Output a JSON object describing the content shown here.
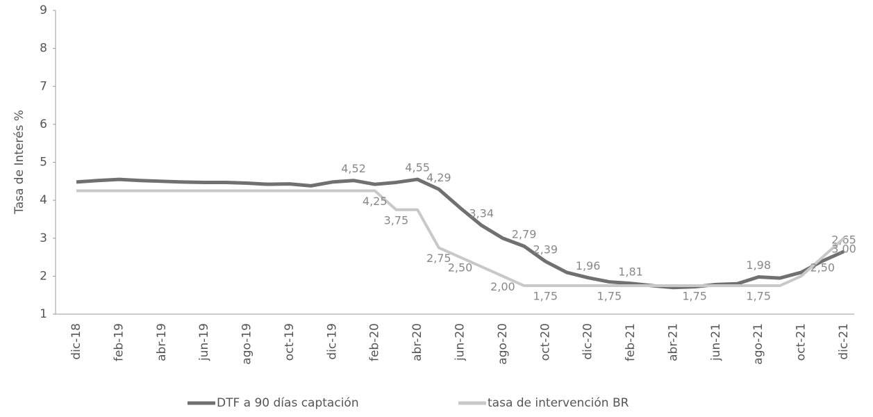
{
  "chart_data": {
    "type": "line",
    "y_label": "Tasa de Interés %",
    "categories": [
      "dic-18",
      null,
      "feb-19",
      null,
      "abr-19",
      null,
      "jun-19",
      null,
      "ago-19",
      null,
      "oct-19",
      null,
      "dic-19",
      null,
      "feb-20",
      null,
      "abr-20",
      null,
      "jun-20",
      null,
      "ago-20",
      null,
      "oct-20",
      null,
      "dic-20",
      null,
      "feb-21",
      null,
      "abr-21",
      null,
      "jun-21",
      null,
      "ago-21",
      null,
      "oct-21",
      null,
      "dic-21"
    ],
    "series": [
      {
        "name": "DTF a 90 días captación",
        "color": "#707070",
        "values": [
          4.48,
          4.52,
          4.55,
          4.52,
          4.5,
          4.48,
          4.47,
          4.47,
          4.45,
          4.42,
          4.43,
          4.38,
          4.48,
          4.52,
          4.42,
          4.47,
          4.55,
          4.29,
          3.8,
          3.34,
          3.0,
          2.79,
          2.39,
          2.1,
          1.96,
          1.85,
          1.81,
          1.75,
          1.7,
          1.72,
          1.78,
          1.8,
          1.98,
          1.95,
          2.1,
          2.4,
          2.65
        ],
        "value_labels": [
          null,
          null,
          null,
          null,
          null,
          null,
          null,
          null,
          null,
          null,
          null,
          null,
          null,
          "4,52",
          null,
          null,
          "4,55",
          "4,29",
          null,
          "3,34",
          null,
          "2,79",
          "2,39",
          null,
          "1,96",
          null,
          "1,81",
          null,
          null,
          null,
          null,
          null,
          "1,98",
          null,
          null,
          null,
          "2,65"
        ]
      },
      {
        "name": "tasa de intervención BR",
        "color": "#c8c8c8",
        "values": [
          4.25,
          4.25,
          4.25,
          4.25,
          4.25,
          4.25,
          4.25,
          4.25,
          4.25,
          4.25,
          4.25,
          4.25,
          4.25,
          4.25,
          4.25,
          3.75,
          3.75,
          2.75,
          2.5,
          2.25,
          2.0,
          1.75,
          1.75,
          1.75,
          1.75,
          1.75,
          1.75,
          1.75,
          1.75,
          1.75,
          1.75,
          1.75,
          1.75,
          1.75,
          2.0,
          2.5,
          3.0
        ],
        "value_labels": [
          null,
          null,
          null,
          null,
          null,
          null,
          null,
          null,
          null,
          null,
          null,
          null,
          null,
          null,
          "4,25",
          "3,75",
          null,
          "2,75",
          "2,50",
          null,
          "2,00",
          null,
          "1,75",
          null,
          null,
          "1,75",
          null,
          null,
          null,
          "1,75",
          null,
          null,
          "1,75",
          null,
          null,
          "2,50",
          "3,00"
        ]
      }
    ],
    "ylim": [
      1,
      9
    ],
    "yticks": [
      1,
      2,
      3,
      4,
      5,
      6,
      7,
      8,
      9
    ],
    "grid": false
  }
}
